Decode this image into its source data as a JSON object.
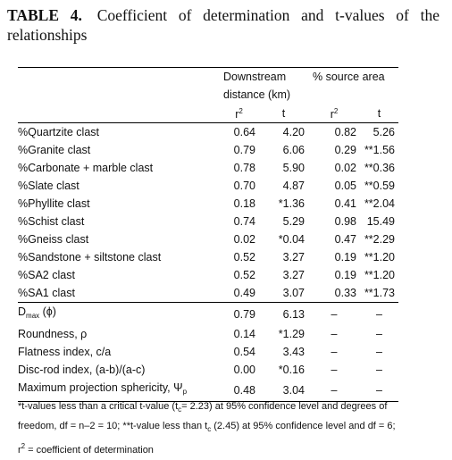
{
  "title": {
    "label": "TABLE 4.",
    "text": "Coefficient of determination and t-values of the relationships"
  },
  "table": {
    "group_headers": [
      "Downstream distance (km)",
      "% source area"
    ],
    "sub_headers": [
      [
        {
          "text": "r"
        },
        {
          "sup": "2"
        }
      ],
      [
        {
          "text": "t"
        }
      ],
      [
        {
          "text": "r"
        },
        {
          "sup": "2"
        }
      ],
      [
        {
          "text": "t"
        }
      ]
    ],
    "sections": [
      [
        {
          "label": [
            {
              "text": "%Quartzite clast"
            }
          ],
          "values": [
            "0.64",
            "4.20",
            "0.82",
            "5.26"
          ]
        },
        {
          "label": [
            {
              "text": "%Granite clast"
            }
          ],
          "values": [
            "0.79",
            "6.06",
            "0.29",
            "**1.56"
          ]
        },
        {
          "label": [
            {
              "text": "%Carbonate + marble clast"
            }
          ],
          "values": [
            "0.78",
            "5.90",
            "0.02",
            "**0.36"
          ]
        },
        {
          "label": [
            {
              "text": "%Slate clast"
            }
          ],
          "values": [
            "0.70",
            "4.87",
            "0.05",
            "**0.59"
          ]
        },
        {
          "label": [
            {
              "text": "%Phyllite clast"
            }
          ],
          "values": [
            "0.18",
            "*1.36",
            "0.41",
            "**2.04"
          ]
        },
        {
          "label": [
            {
              "text": "%Schist clast"
            }
          ],
          "values": [
            "0.74",
            "5.29",
            "0.98",
            "15.49"
          ]
        },
        {
          "label": [
            {
              "text": "%Gneiss clast"
            }
          ],
          "values": [
            "0.02",
            "*0.04",
            "0.47",
            "**2.29"
          ]
        },
        {
          "label": [
            {
              "text": "%Sandstone + siltstone clast"
            }
          ],
          "values": [
            "0.52",
            "3.27",
            "0.19",
            "**1.20"
          ]
        },
        {
          "label": [
            {
              "text": "%SA2 clast"
            }
          ],
          "values": [
            "0.52",
            "3.27",
            "0.19",
            "**1.20"
          ]
        },
        {
          "label": [
            {
              "text": "%SA1 clast"
            }
          ],
          "values": [
            "0.49",
            "3.07",
            "0.33",
            "**1.73"
          ]
        }
      ],
      [
        {
          "label": [
            {
              "text": "D"
            },
            {
              "sub": "max"
            },
            {
              "text": " (ϕ)"
            }
          ],
          "values": [
            "0.79",
            "6.13",
            "–",
            "–"
          ]
        },
        {
          "label": [
            {
              "text": "Roundness, ρ"
            }
          ],
          "values": [
            "0.14",
            "*1.29",
            "–",
            "–"
          ]
        },
        {
          "label": [
            {
              "text": "Flatness index, c/a"
            }
          ],
          "values": [
            "0.54",
            "3.43",
            "–",
            "–"
          ]
        },
        {
          "label": [
            {
              "text": "Disc-rod index, (a-b)/(a-c)"
            }
          ],
          "values": [
            "0.00",
            "*0.16",
            "–",
            "–"
          ]
        },
        {
          "label": [
            {
              "text": "Maximum projection sphericity, Ψ"
            },
            {
              "sub": "p"
            }
          ],
          "values": [
            "0.48",
            "3.04",
            "–",
            "–"
          ]
        }
      ]
    ],
    "footnote": [
      {
        "text": "*t-values less than a critical t-value (t"
      },
      {
        "sub": "c"
      },
      {
        "text": "= 2.23) at 95% confidence level and degrees of freedom, df = n–2 = 10; **t-value less than t"
      },
      {
        "sub": "c"
      },
      {
        "text": " (2.45) at 95% confidence level and df = 6; r"
      },
      {
        "sup": "2"
      },
      {
        "text": " = coefficient of determination"
      }
    ]
  }
}
